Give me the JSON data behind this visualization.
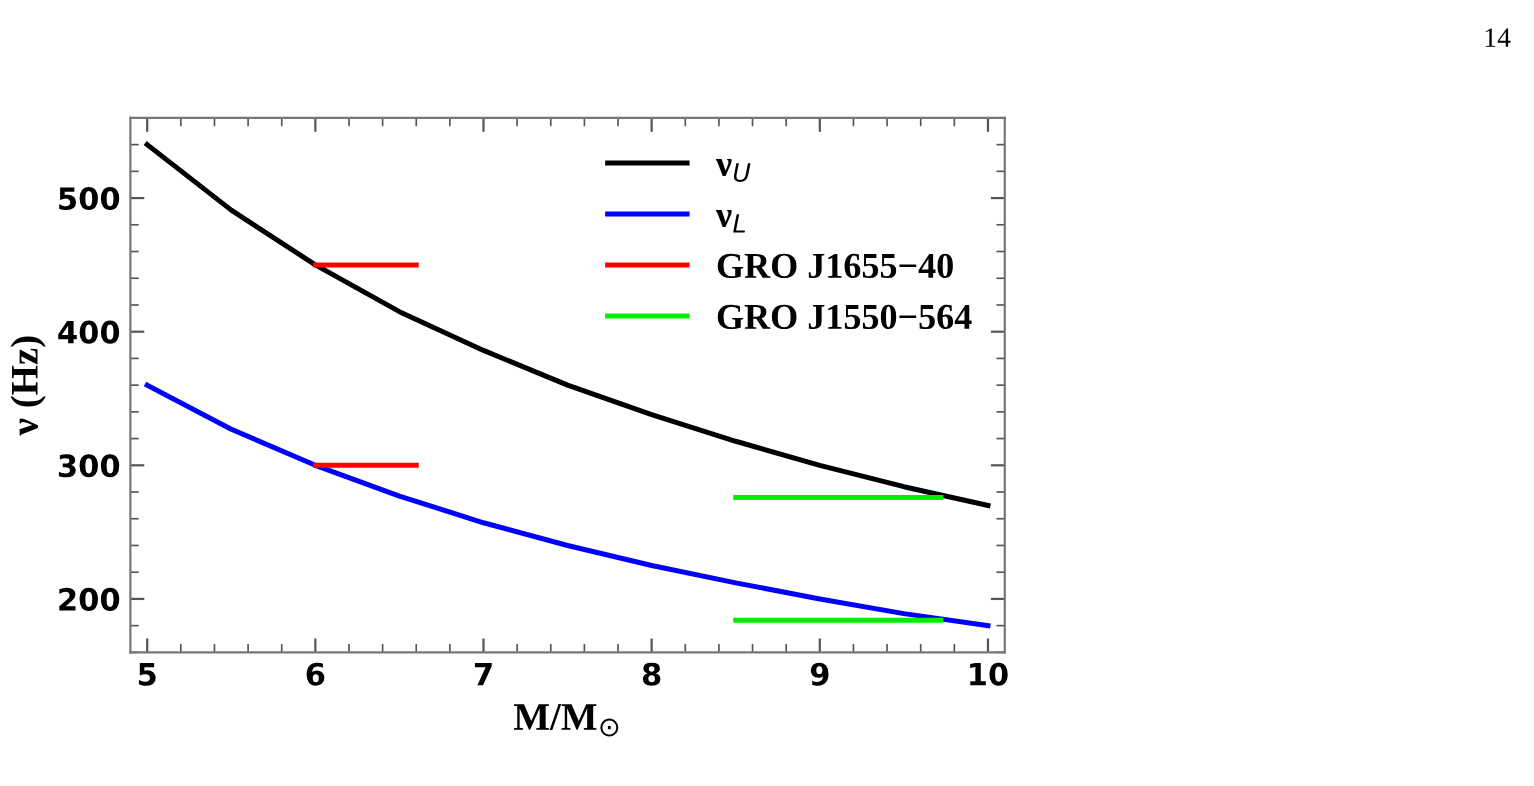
{
  "chart_data": {
    "type": "line",
    "xlabel": "M/M$_{⊙}$",
    "ylabel": "ν (Hz)",
    "annotations": [
      "14"
    ],
    "xlim": [
      4.9,
      10.1
    ],
    "ylim": [
      160,
      560
    ],
    "xticks": [
      5,
      6,
      7,
      8,
      9,
      10
    ],
    "yticks": [
      200,
      300,
      400,
      500
    ],
    "grid": false,
    "legend": "top right",
    "line_style": "solid",
    "marker": "none",
    "series": [
      {
        "name": "ν$_{U}$",
        "color": "#000000",
        "x": [
          5,
          5.5,
          6,
          6.5,
          7,
          7.5,
          8,
          8.5,
          9,
          9.5,
          10
        ],
        "values": [
          540,
          491,
          450,
          415,
          386,
          360,
          338,
          318,
          300,
          284,
          270
        ]
      },
      {
        "name": "ν$_{L}$",
        "color": "#0000ff",
        "x": [
          5,
          5.5,
          6,
          6.5,
          7,
          7.5,
          8,
          8.5,
          9,
          9.5,
          10
        ],
        "values": [
          360,
          327,
          300,
          277,
          257,
          240,
          225,
          212,
          200,
          189,
          180
        ]
      },
      {
        "name": "GRO J1655−40",
        "color": "#ff0000",
        "x": [
          6,
          6.6
        ],
        "values": [
          450,
          450
        ]
      },
      {
        "color": "#ff0000",
        "x": [
          6,
          6.6
        ],
        "values": [
          300,
          300
        ]
      },
      {
        "name": "GRO J1550−564",
        "color": "#00ee00",
        "x": [
          8.5,
          9.72
        ],
        "values": [
          276,
          276
        ]
      },
      {
        "color": "#00ee00",
        "x": [
          8.5,
          9.72
        ],
        "values": [
          184,
          184
        ]
      }
    ]
  }
}
